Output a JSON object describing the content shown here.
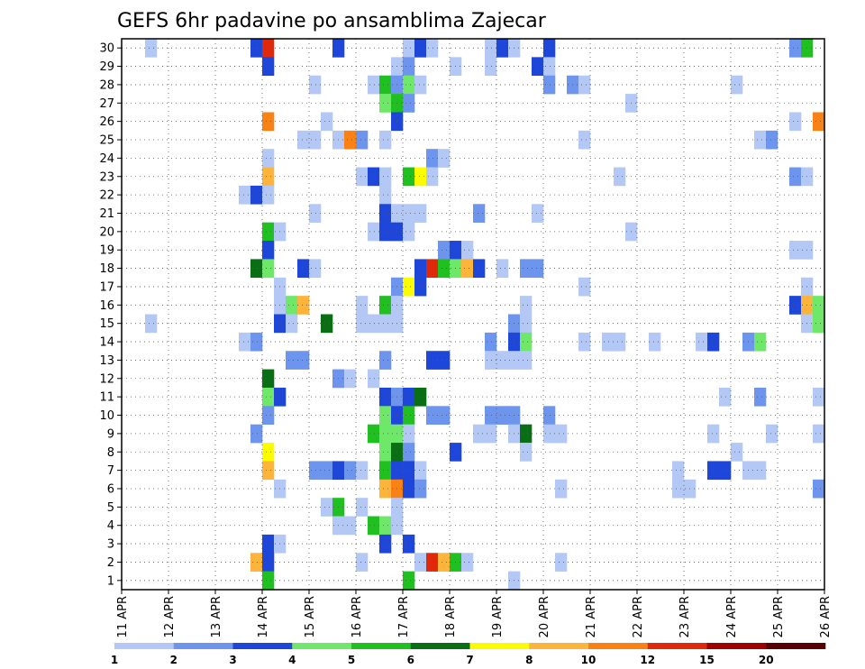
{
  "chart_data": {
    "type": "heatmap",
    "title": "GEFS 6hr padavine po ansamblima Zajecar",
    "xlabel": "",
    "ylabel": "",
    "x_tick_labels": [
      "11 APR",
      "12 APR",
      "13 APR",
      "14 APR",
      "15 APR",
      "16 APR",
      "17 APR",
      "18 APR",
      "19 APR",
      "20 APR",
      "21 APR",
      "22 APR",
      "23 APR",
      "24 APR",
      "25 APR",
      "26 APR"
    ],
    "y_tick_labels": [
      "1",
      "2",
      "3",
      "4",
      "5",
      "6",
      "7",
      "8",
      "9",
      "10",
      "11",
      "12",
      "13",
      "14",
      "15",
      "16",
      "17",
      "18",
      "19",
      "20",
      "21",
      "22",
      "23",
      "24",
      "25",
      "26",
      "27",
      "28",
      "29",
      "30"
    ],
    "steps_per_day": 4,
    "n_steps": 60,
    "n_members": 30,
    "grid": true,
    "colorbar": {
      "position": "bottom",
      "labels": [
        "1",
        "2",
        "3",
        "4",
        "5",
        "6",
        "7",
        "8",
        "10",
        "12",
        "15",
        "20"
      ],
      "colors": [
        "#b4c8f5",
        "#6e95ee",
        "#1e46d8",
        "#6fe86a",
        "#20c020",
        "#0a6e14",
        "#fcfc00",
        "#fcb43a",
        "#fa8214",
        "#e0280a",
        "#a00000",
        "#5a0005"
      ]
    },
    "cells": [
      [
        30,
        2,
        0
      ],
      [
        30,
        11,
        2
      ],
      [
        30,
        12,
        9
      ],
      [
        30,
        18,
        2
      ],
      [
        30,
        24,
        0
      ],
      [
        30,
        25,
        2
      ],
      [
        30,
        26,
        0
      ],
      [
        30,
        31,
        0
      ],
      [
        30,
        32,
        2
      ],
      [
        30,
        33,
        0
      ],
      [
        30,
        36,
        2
      ],
      [
        30,
        57,
        1
      ],
      [
        30,
        58,
        4
      ],
      [
        29,
        12,
        2
      ],
      [
        29,
        23,
        0
      ],
      [
        29,
        24,
        1
      ],
      [
        29,
        28,
        0
      ],
      [
        29,
        31,
        0
      ],
      [
        29,
        35,
        2
      ],
      [
        29,
        36,
        0
      ],
      [
        28,
        16,
        0
      ],
      [
        28,
        21,
        0
      ],
      [
        28,
        22,
        4
      ],
      [
        28,
        23,
        1
      ],
      [
        28,
        24,
        3
      ],
      [
        28,
        25,
        0
      ],
      [
        28,
        36,
        1
      ],
      [
        28,
        38,
        1
      ],
      [
        28,
        39,
        0
      ],
      [
        28,
        52,
        0
      ],
      [
        27,
        22,
        3
      ],
      [
        27,
        23,
        4
      ],
      [
        27,
        24,
        1
      ],
      [
        27,
        43,
        0
      ],
      [
        26,
        12,
        8
      ],
      [
        26,
        17,
        0
      ],
      [
        26,
        23,
        2
      ],
      [
        26,
        57,
        0
      ],
      [
        26,
        59,
        8
      ],
      [
        25,
        15,
        0
      ],
      [
        25,
        16,
        0
      ],
      [
        25,
        18,
        0
      ],
      [
        25,
        19,
        8
      ],
      [
        25,
        20,
        1
      ],
      [
        25,
        22,
        0
      ],
      [
        25,
        39,
        0
      ],
      [
        25,
        54,
        0
      ],
      [
        25,
        55,
        1
      ],
      [
        24,
        12,
        0
      ],
      [
        24,
        26,
        1
      ],
      [
        24,
        27,
        0
      ],
      [
        23,
        12,
        7
      ],
      [
        23,
        20,
        0
      ],
      [
        23,
        21,
        2
      ],
      [
        23,
        22,
        0
      ],
      [
        23,
        24,
        4
      ],
      [
        23,
        25,
        6
      ],
      [
        23,
        26,
        0
      ],
      [
        23,
        42,
        0
      ],
      [
        23,
        57,
        1
      ],
      [
        23,
        58,
        0
      ],
      [
        22,
        10,
        0
      ],
      [
        22,
        11,
        2
      ],
      [
        22,
        12,
        0
      ],
      [
        22,
        22,
        0
      ],
      [
        21,
        16,
        0
      ],
      [
        21,
        22,
        2
      ],
      [
        21,
        23,
        0
      ],
      [
        21,
        24,
        0
      ],
      [
        21,
        25,
        0
      ],
      [
        21,
        30,
        1
      ],
      [
        21,
        35,
        0
      ],
      [
        20,
        12,
        4
      ],
      [
        20,
        13,
        0
      ],
      [
        20,
        21,
        0
      ],
      [
        20,
        22,
        2
      ],
      [
        20,
        23,
        2
      ],
      [
        20,
        24,
        0
      ],
      [
        20,
        43,
        0
      ],
      [
        19,
        12,
        2
      ],
      [
        19,
        27,
        1
      ],
      [
        19,
        28,
        2
      ],
      [
        19,
        29,
        0
      ],
      [
        19,
        57,
        0
      ],
      [
        19,
        58,
        0
      ],
      [
        18,
        11,
        5
      ],
      [
        18,
        12,
        3
      ],
      [
        18,
        15,
        2
      ],
      [
        18,
        16,
        0
      ],
      [
        18,
        25,
        2
      ],
      [
        18,
        26,
        9
      ],
      [
        18,
        27,
        4
      ],
      [
        18,
        28,
        3
      ],
      [
        18,
        29,
        7
      ],
      [
        18,
        30,
        2
      ],
      [
        18,
        32,
        0
      ],
      [
        18,
        34,
        1
      ],
      [
        18,
        35,
        1
      ],
      [
        17,
        13,
        0
      ],
      [
        17,
        23,
        1
      ],
      [
        17,
        24,
        6
      ],
      [
        17,
        25,
        2
      ],
      [
        17,
        39,
        0
      ],
      [
        17,
        58,
        0
      ],
      [
        16,
        13,
        0
      ],
      [
        16,
        14,
        3
      ],
      [
        16,
        15,
        7
      ],
      [
        16,
        20,
        0
      ],
      [
        16,
        22,
        4
      ],
      [
        16,
        23,
        0
      ],
      [
        16,
        34,
        0
      ],
      [
        16,
        57,
        2
      ],
      [
        16,
        58,
        7
      ],
      [
        16,
        59,
        3
      ],
      [
        15,
        2,
        0
      ],
      [
        15,
        13,
        2
      ],
      [
        15,
        14,
        0
      ],
      [
        15,
        17,
        5
      ],
      [
        15,
        20,
        0
      ],
      [
        15,
        21,
        0
      ],
      [
        15,
        22,
        0
      ],
      [
        15,
        23,
        0
      ],
      [
        15,
        33,
        1
      ],
      [
        15,
        34,
        0
      ],
      [
        15,
        58,
        0
      ],
      [
        15,
        59,
        3
      ],
      [
        14,
        10,
        0
      ],
      [
        14,
        11,
        1
      ],
      [
        14,
        31,
        1
      ],
      [
        14,
        33,
        2
      ],
      [
        14,
        34,
        3
      ],
      [
        14,
        39,
        0
      ],
      [
        14,
        41,
        0
      ],
      [
        14,
        42,
        0
      ],
      [
        14,
        45,
        0
      ],
      [
        14,
        49,
        0
      ],
      [
        14,
        50,
        2
      ],
      [
        14,
        53,
        1
      ],
      [
        14,
        54,
        3
      ],
      [
        13,
        14,
        1
      ],
      [
        13,
        15,
        1
      ],
      [
        13,
        22,
        1
      ],
      [
        13,
        26,
        2
      ],
      [
        13,
        27,
        2
      ],
      [
        13,
        31,
        0
      ],
      [
        13,
        32,
        0
      ],
      [
        13,
        33,
        0
      ],
      [
        13,
        34,
        0
      ],
      [
        12,
        12,
        5
      ],
      [
        12,
        18,
        1
      ],
      [
        12,
        19,
        0
      ],
      [
        12,
        21,
        0
      ],
      [
        11,
        12,
        3
      ],
      [
        11,
        13,
        2
      ],
      [
        11,
        22,
        2
      ],
      [
        11,
        23,
        1
      ],
      [
        11,
        24,
        2
      ],
      [
        11,
        25,
        5
      ],
      [
        11,
        51,
        0
      ],
      [
        11,
        54,
        1
      ],
      [
        11,
        59,
        0
      ],
      [
        10,
        12,
        1
      ],
      [
        10,
        22,
        3
      ],
      [
        10,
        23,
        2
      ],
      [
        10,
        24,
        4
      ],
      [
        10,
        26,
        1
      ],
      [
        10,
        27,
        1
      ],
      [
        10,
        31,
        1
      ],
      [
        10,
        32,
        1
      ],
      [
        10,
        33,
        1
      ],
      [
        10,
        36,
        1
      ],
      [
        9,
        11,
        1
      ],
      [
        9,
        21,
        4
      ],
      [
        9,
        22,
        3
      ],
      [
        9,
        23,
        3
      ],
      [
        9,
        24,
        0
      ],
      [
        9,
        30,
        0
      ],
      [
        9,
        31,
        0
      ],
      [
        9,
        33,
        0
      ],
      [
        9,
        34,
        5
      ],
      [
        9,
        36,
        0
      ],
      [
        9,
        37,
        0
      ],
      [
        9,
        50,
        0
      ],
      [
        9,
        55,
        0
      ],
      [
        9,
        59,
        0
      ],
      [
        8,
        12,
        6
      ],
      [
        8,
        22,
        3
      ],
      [
        8,
        23,
        5
      ],
      [
        8,
        24,
        1
      ],
      [
        8,
        28,
        2
      ],
      [
        8,
        34,
        0
      ],
      [
        8,
        52,
        0
      ],
      [
        7,
        12,
        7
      ],
      [
        7,
        16,
        1
      ],
      [
        7,
        17,
        1
      ],
      [
        7,
        18,
        2
      ],
      [
        7,
        19,
        1
      ],
      [
        7,
        20,
        0
      ],
      [
        7,
        22,
        4
      ],
      [
        7,
        23,
        2
      ],
      [
        7,
        24,
        2
      ],
      [
        7,
        25,
        0
      ],
      [
        7,
        47,
        0
      ],
      [
        7,
        50,
        2
      ],
      [
        7,
        51,
        2
      ],
      [
        7,
        53,
        0
      ],
      [
        7,
        54,
        0
      ],
      [
        6,
        13,
        0
      ],
      [
        6,
        22,
        7
      ],
      [
        6,
        23,
        8
      ],
      [
        6,
        24,
        2
      ],
      [
        6,
        25,
        1
      ],
      [
        6,
        37,
        0
      ],
      [
        6,
        47,
        0
      ],
      [
        6,
        48,
        0
      ],
      [
        6,
        59,
        1
      ],
      [
        5,
        17,
        0
      ],
      [
        5,
        18,
        4
      ],
      [
        5,
        20,
        0
      ],
      [
        5,
        23,
        0
      ],
      [
        4,
        18,
        0
      ],
      [
        4,
        19,
        0
      ],
      [
        4,
        21,
        4
      ],
      [
        4,
        22,
        3
      ],
      [
        4,
        23,
        0
      ],
      [
        3,
        12,
        2
      ],
      [
        3,
        13,
        0
      ],
      [
        3,
        22,
        2
      ],
      [
        3,
        24,
        2
      ],
      [
        2,
        11,
        7
      ],
      [
        2,
        12,
        2
      ],
      [
        2,
        20,
        0
      ],
      [
        2,
        25,
        0
      ],
      [
        2,
        26,
        9
      ],
      [
        2,
        27,
        7
      ],
      [
        2,
        28,
        4
      ],
      [
        2,
        29,
        0
      ],
      [
        2,
        37,
        0
      ],
      [
        1,
        12,
        4
      ],
      [
        1,
        24,
        4
      ],
      [
        1,
        33,
        0
      ]
    ]
  }
}
